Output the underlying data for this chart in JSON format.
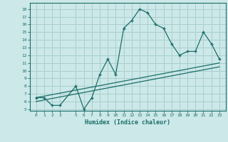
{
  "xlabel": "Humidex (Indice chaleur)",
  "bg_color": "#cce8e8",
  "line_color": "#1a6e6a",
  "grid_color": "#aacece",
  "x_ticks": [
    0,
    1,
    2,
    3,
    5,
    6,
    7,
    8,
    9,
    10,
    11,
    12,
    13,
    14,
    15,
    16,
    17,
    18,
    19,
    20,
    21,
    22,
    23
  ],
  "x_tick_labels": [
    "0",
    "1",
    "2",
    "3",
    "5",
    "6",
    "7",
    "8",
    "9",
    "10",
    "11",
    "12",
    "13",
    "14",
    "15",
    "16",
    "17",
    "18",
    "19",
    "20",
    "21",
    "22",
    "23"
  ],
  "y_ticks": [
    5,
    6,
    7,
    8,
    9,
    10,
    11,
    12,
    13,
    14,
    15,
    16,
    17,
    18
  ],
  "ylim": [
    4.8,
    18.8
  ],
  "xlim": [
    -0.8,
    23.8
  ],
  "curve1_x": [
    0,
    1,
    2,
    3,
    5,
    6,
    7,
    8,
    9,
    10,
    11,
    12,
    13,
    14,
    15,
    16,
    17,
    18,
    19,
    20,
    21,
    22,
    23
  ],
  "curve1_y": [
    6.5,
    6.5,
    5.5,
    5.5,
    8.0,
    5.0,
    6.5,
    9.5,
    11.5,
    9.5,
    15.5,
    16.5,
    18.0,
    17.5,
    16.0,
    15.5,
    13.5,
    12.0,
    12.5,
    12.5,
    15.0,
    13.5,
    11.5
  ],
  "curve2_x": [
    0,
    23
  ],
  "curve2_y": [
    6.5,
    11.0
  ],
  "curve3_x": [
    0,
    23
  ],
  "curve3_y": [
    6.0,
    10.5
  ]
}
